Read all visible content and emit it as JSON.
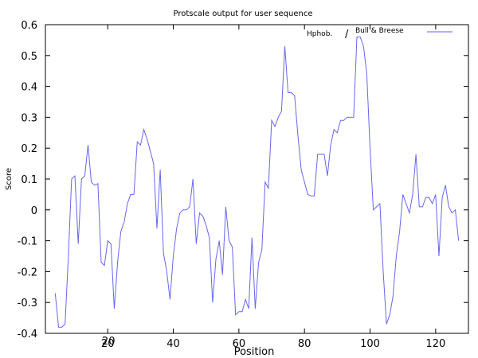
{
  "chart_data": {
    "type": "line",
    "title": "Protscale output for user sequence",
    "xlabel": "Position",
    "ylabel": "Score",
    "xlim": [
      1,
      130
    ],
    "ylim": [
      -0.4,
      0.6
    ],
    "x_ticks": [
      20,
      40,
      60,
      80,
      100,
      120
    ],
    "y_ticks": [
      -0.4,
      -0.3,
      -0.2,
      -0.1,
      0,
      0.1,
      0.2,
      0.3,
      0.4,
      0.5,
      0.6
    ],
    "y_tick_labels": [
      "-0.4",
      "-0.3",
      "-0.2",
      "-0.1",
      "0",
      "0.1",
      "0.2",
      "0.3",
      "0.4",
      "0.5",
      "0.6"
    ],
    "extra_tick_label": {
      "x": 20,
      "text": "20"
    },
    "grid": false,
    "legend_position": "top-right",
    "legend_text_left": "Hphob.",
    "legend_separator": "/",
    "legend_text_right": "Bull  &  Breese",
    "series": [
      {
        "name": "Bull & Breese",
        "color": "#6666ee",
        "x": [
          4,
          5,
          6,
          7,
          8,
          9,
          10,
          11,
          12,
          13,
          14,
          15,
          16,
          17,
          18,
          19,
          20,
          21,
          22,
          23,
          24,
          25,
          26,
          27,
          28,
          29,
          30,
          31,
          32,
          33,
          34,
          35,
          36,
          37,
          38,
          39,
          40,
          41,
          42,
          43,
          44,
          45,
          46,
          47,
          48,
          49,
          50,
          51,
          52,
          53,
          54,
          55,
          56,
          57,
          58,
          59,
          60,
          61,
          62,
          63,
          64,
          65,
          66,
          67,
          68,
          69,
          70,
          71,
          72,
          73,
          74,
          75,
          76,
          77,
          78,
          79,
          80,
          81,
          82,
          83,
          84,
          85,
          86,
          87,
          88,
          89,
          90,
          91,
          92,
          93,
          94,
          95,
          96,
          97,
          98,
          99,
          100,
          101,
          102,
          103,
          104,
          105,
          106,
          107,
          108,
          109,
          110,
          111,
          112,
          113,
          114,
          115,
          116,
          117,
          118,
          119,
          120,
          121,
          122,
          123,
          124,
          125,
          126,
          127
        ],
        "values": [
          -0.27,
          -0.38,
          -0.38,
          -0.37,
          -0.15,
          0.1,
          0.11,
          -0.11,
          0.1,
          0.11,
          0.21,
          0.09,
          0.08,
          0.085,
          -0.17,
          -0.18,
          -0.1,
          -0.11,
          -0.32,
          -0.17,
          -0.07,
          -0.04,
          0.02,
          0.05,
          0.05,
          0.22,
          0.21,
          0.26,
          0.23,
          0.19,
          0.15,
          -0.06,
          0.13,
          -0.14,
          -0.2,
          -0.29,
          -0.15,
          -0.06,
          -0.01,
          0.0,
          0.0,
          0.01,
          0.1,
          -0.11,
          -0.01,
          -0.02,
          -0.05,
          -0.09,
          -0.3,
          -0.16,
          -0.1,
          -0.21,
          0.01,
          -0.1,
          -0.12,
          -0.34,
          -0.33,
          -0.33,
          -0.29,
          -0.32,
          -0.09,
          -0.32,
          -0.17,
          -0.13,
          0.09,
          0.07,
          0.29,
          0.27,
          0.3,
          0.32,
          0.53,
          0.38,
          0.38,
          0.37,
          0.24,
          0.13,
          0.09,
          0.05,
          0.045,
          0.045,
          0.18,
          0.18,
          0.18,
          0.11,
          0.21,
          0.26,
          0.25,
          0.29,
          0.29,
          0.3,
          0.3,
          0.3,
          0.56,
          0.56,
          0.53,
          0.44,
          0.2,
          0.0,
          0.01,
          0.02,
          -0.2,
          -0.37,
          -0.34,
          -0.28,
          -0.15,
          -0.07,
          0.05,
          0.02,
          -0.01,
          0.05,
          0.18,
          0.01,
          0.01,
          0.04,
          0.04,
          0.02,
          0.05,
          -0.15,
          0.04,
          0.08,
          0.01,
          -0.01,
          0.0,
          -0.1
        ]
      }
    ]
  }
}
